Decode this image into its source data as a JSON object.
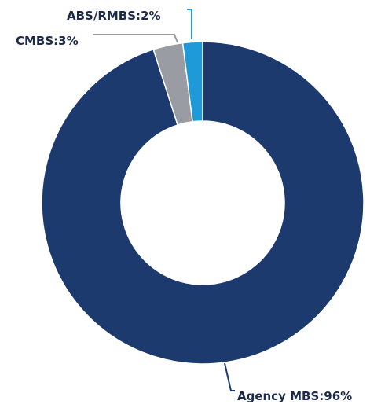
{
  "chart_data": {
    "type": "pie",
    "variant": "donut",
    "title": "",
    "slices": [
      {
        "label": "Agency MBS",
        "value": 96,
        "display": "Agency MBS:96%",
        "color": "#1c3a6e"
      },
      {
        "label": "CMBS",
        "value": 3,
        "display": "CMBS:3%",
        "color": "#999ca3"
      },
      {
        "label": "ABS/RMBS",
        "value": 2,
        "display": "ABS/RMBS:2%",
        "color": "#1e9ad8"
      }
    ],
    "start_angle_deg": -90,
    "direction": "clockwise"
  }
}
